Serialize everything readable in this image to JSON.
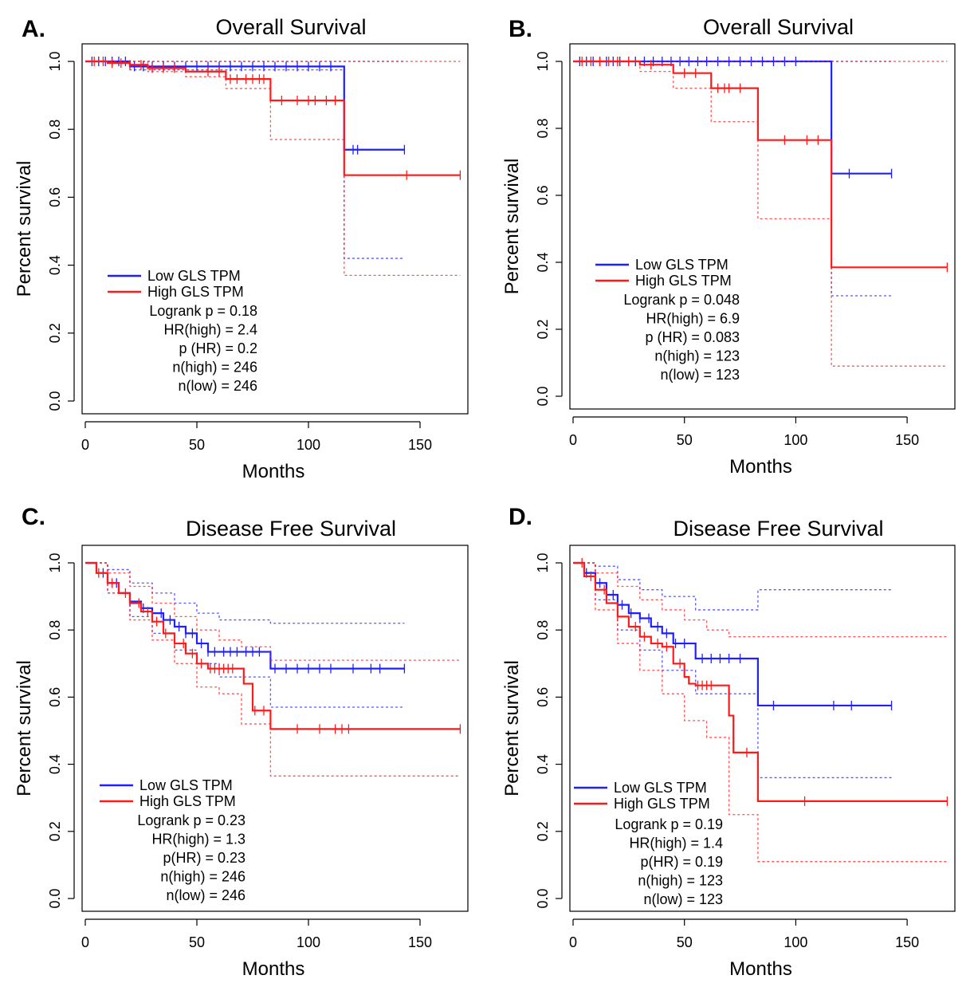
{
  "colors": {
    "low": "#1f1fff",
    "high": "#ff1a1a"
  },
  "chart_data": [
    {
      "panel": "A.",
      "type": "line",
      "title": "Overall Survival",
      "xlabel": "Months",
      "ylabel": "Percent survival",
      "xlim": [
        0,
        170
      ],
      "ylim": [
        0,
        1
      ],
      "xticks": [
        "0",
        "50",
        "100",
        "150"
      ],
      "yticks": [
        "0.0",
        "0.2",
        "0.4",
        "0.6",
        "0.8",
        "1.0"
      ],
      "legend": [
        "Low GLS TPM",
        "High GLS TPM"
      ],
      "stats": [
        "Logrank p  =  0.18",
        "HR(high) =  2.4",
        "p (HR) =  0.2",
        "n(high) =  246",
        "n(low) =  246"
      ],
      "series": [
        {
          "name": "Low GLS TPM",
          "color": "#1f1fff",
          "x": [
            0,
            20,
            116,
            116,
            143
          ],
          "y": [
            1.0,
            0.985,
            0.985,
            0.74,
            0.74
          ],
          "ci_upper": {
            "x": [
              0,
              143
            ],
            "y": [
              1.0,
              1.0
            ]
          },
          "ci_lower": {
            "x": [
              0,
              20,
              116,
              116,
              143
            ],
            "y": [
              1.0,
              0.975,
              0.975,
              0.42,
              0.42
            ]
          },
          "censor_x": [
            3,
            6,
            9,
            12,
            15,
            18,
            22,
            26,
            30,
            35,
            40,
            45,
            50,
            55,
            60,
            65,
            70,
            75,
            80,
            85,
            90,
            95,
            100,
            105,
            110,
            120,
            122,
            143
          ]
        },
        {
          "name": "High GLS TPM",
          "color": "#ff1a1a",
          "x": [
            0,
            10,
            20,
            28,
            45,
            63,
            83,
            116,
            116,
            168
          ],
          "y": [
            1.0,
            0.995,
            0.99,
            0.98,
            0.97,
            0.948,
            0.885,
            0.885,
            0.665,
            0.665
          ],
          "ci_upper": {
            "x": [
              0,
              168
            ],
            "y": [
              1.0,
              1.0
            ]
          },
          "ci_lower": {
            "x": [
              0,
              28,
              45,
              63,
              83,
              116,
              116,
              168
            ],
            "y": [
              1.0,
              0.97,
              0.955,
              0.92,
              0.77,
              0.77,
              0.37,
              0.37
            ]
          },
          "censor_x": [
            4,
            8,
            12,
            16,
            20,
            25,
            30,
            35,
            40,
            55,
            60,
            65,
            68,
            72,
            75,
            78,
            80,
            88,
            95,
            100,
            103,
            108,
            112,
            144,
            168
          ]
        }
      ]
    },
    {
      "panel": "B.",
      "type": "line",
      "title": "Overall Survival",
      "xlabel": "Months",
      "ylabel": "Percent survival",
      "xlim": [
        0,
        170
      ],
      "ylim": [
        0,
        1
      ],
      "xticks": [
        "0",
        "50",
        "100",
        "150"
      ],
      "yticks": [
        "0.0",
        "0.2",
        "0.4",
        "0.6",
        "0.8",
        "1.0"
      ],
      "legend": [
        "Low GLS TPM",
        "High GLS TPM"
      ],
      "stats": [
        "Logrank p   =  0.048",
        "HR(high) =  6.9",
        "p  (HR) =  0.083",
        "n(high) =  123",
        "n(low) =  123"
      ],
      "series": [
        {
          "name": "Low GLS TPM",
          "color": "#1f1fff",
          "x": [
            0,
            116,
            116,
            143
          ],
          "y": [
            1.0,
            1.0,
            0.665,
            0.665
          ],
          "ci_upper": {
            "x": [
              0,
              143
            ],
            "y": [
              1.0,
              1.0
            ]
          },
          "ci_lower": {
            "x": [
              0,
              116,
              116,
              143
            ],
            "y": [
              1.0,
              1.0,
              0.3,
              0.3
            ]
          },
          "censor_x": [
            3,
            6,
            9,
            12,
            15,
            18,
            21,
            25,
            28,
            32,
            36,
            40,
            44,
            48,
            52,
            56,
            60,
            65,
            70,
            75,
            80,
            85,
            90,
            95,
            100,
            124,
            143
          ]
        },
        {
          "name": "High GLS TPM",
          "color": "#ff1a1a",
          "x": [
            0,
            30,
            45,
            62,
            83,
            116,
            116,
            168
          ],
          "y": [
            1.0,
            0.99,
            0.965,
            0.92,
            0.765,
            0.765,
            0.385,
            0.385
          ],
          "ci_upper": {
            "x": [
              0,
              168
            ],
            "y": [
              1.0,
              1.0
            ]
          },
          "ci_lower": {
            "x": [
              0,
              30,
              45,
              62,
              83,
              116,
              116,
              168
            ],
            "y": [
              1.0,
              0.97,
              0.92,
              0.82,
              0.53,
              0.53,
              0.09,
              0.09
            ]
          },
          "censor_x": [
            4,
            8,
            12,
            16,
            20,
            25,
            35,
            50,
            55,
            65,
            68,
            70,
            75,
            95,
            105,
            110,
            168
          ]
        }
      ]
    },
    {
      "panel": "C.",
      "type": "line",
      "title": "Disease Free Survival",
      "xlabel": "Months",
      "ylabel": "Percent survival",
      "xlim": [
        0,
        170
      ],
      "ylim": [
        0,
        1
      ],
      "xticks": [
        "0",
        "50",
        "100",
        "150"
      ],
      "yticks": [
        "0.0",
        "0.2",
        "0.4",
        "0.6",
        "0.8",
        "1.0"
      ],
      "legend": [
        "Low GLS TPM",
        "High GLS TPM"
      ],
      "stats": [
        "Logrank p  =  0.23",
        "HR(high) =  1.3",
        "p(HR)  =   0.23",
        "n(high) =  246",
        "n(low) =  246"
      ],
      "series": [
        {
          "name": "Low GLS TPM",
          "color": "#1f1fff",
          "x": [
            0,
            5,
            10,
            15,
            20,
            25,
            30,
            35,
            40,
            45,
            50,
            55,
            60,
            83,
            83,
            143
          ],
          "y": [
            1.0,
            0.97,
            0.94,
            0.91,
            0.885,
            0.865,
            0.85,
            0.83,
            0.81,
            0.79,
            0.76,
            0.735,
            0.735,
            0.735,
            0.685,
            0.685
          ],
          "ci_upper": {
            "x": [
              0,
              10,
              20,
              30,
              40,
              50,
              60,
              83,
              143
            ],
            "y": [
              1.0,
              0.98,
              0.94,
              0.91,
              0.88,
              0.85,
              0.83,
              0.82,
              0.82
            ]
          },
          "ci_lower": {
            "x": [
              0,
              10,
              20,
              30,
              40,
              50,
              60,
              83,
              83,
              143
            ],
            "y": [
              1.0,
              0.91,
              0.84,
              0.79,
              0.74,
              0.7,
              0.66,
              0.66,
              0.57,
              0.57
            ]
          },
          "censor_x": [
            8,
            14,
            20,
            26,
            30,
            34,
            38,
            42,
            45,
            48,
            52,
            55,
            58,
            62,
            65,
            68,
            72,
            75,
            78,
            85,
            90,
            95,
            100,
            105,
            110,
            120,
            128,
            132,
            143
          ]
        },
        {
          "name": "High GLS TPM",
          "color": "#ff1a1a",
          "x": [
            0,
            5,
            10,
            15,
            20,
            25,
            30,
            35,
            40,
            45,
            50,
            55,
            68,
            71,
            75,
            83,
            83,
            168
          ],
          "y": [
            1.0,
            0.97,
            0.94,
            0.91,
            0.88,
            0.855,
            0.825,
            0.79,
            0.76,
            0.73,
            0.7,
            0.685,
            0.685,
            0.64,
            0.56,
            0.56,
            0.505,
            0.505
          ],
          "ci_upper": {
            "x": [
              0,
              10,
              20,
              30,
              40,
              50,
              60,
              70,
              83,
              168
            ],
            "y": [
              1.0,
              0.97,
              0.93,
              0.88,
              0.84,
              0.8,
              0.77,
              0.75,
              0.71,
              0.71
            ]
          },
          "ci_lower": {
            "x": [
              0,
              10,
              20,
              30,
              40,
              50,
              60,
              70,
              83,
              83,
              168
            ],
            "y": [
              1.0,
              0.91,
              0.83,
              0.77,
              0.7,
              0.63,
              0.61,
              0.52,
              0.46,
              0.365,
              0.365
            ]
          },
          "censor_x": [
            6,
            12,
            18,
            24,
            28,
            32,
            36,
            40,
            44,
            48,
            52,
            56,
            58,
            60,
            62,
            64,
            66,
            76,
            80,
            95,
            105,
            112,
            115,
            118,
            168
          ]
        }
      ]
    },
    {
      "panel": "D.",
      "type": "line",
      "title": "Disease Free Survival",
      "xlabel": "Months",
      "ylabel": "Percent survival",
      "xlim": [
        0,
        170
      ],
      "ylim": [
        0,
        1
      ],
      "xticks": [
        "0",
        "50",
        "100",
        "150"
      ],
      "yticks": [
        "0.0",
        "0.2",
        "0.4",
        "0.6",
        "0.8",
        "1.0"
      ],
      "legend": [
        "Low GLS TPM",
        "High GLS TPM"
      ],
      "stats": [
        "Logrank p =  0.19",
        "HR(high) =  1.4",
        "p(HR) =  0.19",
        "n(high) =  123",
        "n(low) =  123"
      ],
      "series": [
        {
          "name": "Low GLS TPM",
          "color": "#1f1fff",
          "x": [
            0,
            5,
            10,
            15,
            20,
            25,
            30,
            35,
            40,
            45,
            55,
            83,
            83,
            143
          ],
          "y": [
            1.0,
            0.97,
            0.94,
            0.905,
            0.875,
            0.85,
            0.835,
            0.81,
            0.79,
            0.76,
            0.715,
            0.715,
            0.575,
            0.575
          ],
          "ci_upper": {
            "x": [
              0,
              10,
              20,
              30,
              40,
              55,
              83,
              83,
              143
            ],
            "y": [
              1.0,
              0.99,
              0.95,
              0.92,
              0.9,
              0.86,
              0.86,
              0.92,
              0.92
            ]
          },
          "ci_lower": {
            "x": [
              0,
              10,
              20,
              30,
              40,
              55,
              83,
              83,
              143
            ],
            "y": [
              1.0,
              0.89,
              0.8,
              0.74,
              0.68,
              0.61,
              0.61,
              0.36,
              0.36
            ]
          },
          "censor_x": [
            6,
            12,
            18,
            22,
            26,
            30,
            34,
            38,
            42,
            46,
            50,
            58,
            62,
            66,
            70,
            75,
            90,
            117,
            125,
            143
          ]
        },
        {
          "name": "High GLS TPM",
          "color": "#ff1a1a",
          "x": [
            0,
            5,
            10,
            15,
            20,
            25,
            30,
            35,
            40,
            45,
            50,
            52,
            55,
            68,
            70,
            72,
            83,
            83,
            168
          ],
          "y": [
            1.0,
            0.96,
            0.92,
            0.88,
            0.84,
            0.81,
            0.78,
            0.76,
            0.75,
            0.7,
            0.66,
            0.64,
            0.635,
            0.635,
            0.545,
            0.435,
            0.435,
            0.29,
            0.29
          ],
          "ci_upper": {
            "x": [
              0,
              10,
              20,
              30,
              40,
              50,
              60,
              70,
              83,
              168
            ],
            "y": [
              1.0,
              0.97,
              0.93,
              0.89,
              0.86,
              0.83,
              0.8,
              0.78,
              0.78,
              0.78
            ]
          },
          "ci_lower": {
            "x": [
              0,
              10,
              20,
              30,
              40,
              50,
              60,
              70,
              83,
              83,
              168
            ],
            "y": [
              1.0,
              0.86,
              0.76,
              0.68,
              0.61,
              0.53,
              0.48,
              0.25,
              0.25,
              0.11,
              0.11
            ]
          },
          "censor_x": [
            4,
            8,
            14,
            20,
            28,
            32,
            38,
            42,
            48,
            56,
            58,
            60,
            62,
            78,
            104,
            168
          ]
        }
      ]
    }
  ]
}
